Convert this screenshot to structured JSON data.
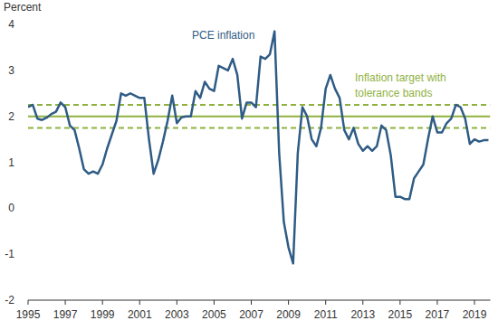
{
  "chart_data": {
    "type": "line",
    "y_label": "Percent",
    "x": [
      1995,
      1995.25,
      1995.5,
      1995.75,
      1996,
      1996.25,
      1996.5,
      1996.75,
      1997,
      1997.25,
      1997.5,
      1997.75,
      1998,
      1998.25,
      1998.5,
      1998.75,
      1999,
      1999.25,
      1999.5,
      1999.75,
      2000,
      2000.25,
      2000.5,
      2000.75,
      2001,
      2001.25,
      2001.5,
      2001.75,
      2002,
      2002.25,
      2002.5,
      2002.75,
      2003,
      2003.25,
      2003.5,
      2003.75,
      2004,
      2004.25,
      2004.5,
      2004.75,
      2005,
      2005.25,
      2005.5,
      2005.75,
      2006,
      2006.25,
      2006.5,
      2006.75,
      2007,
      2007.25,
      2007.5,
      2007.75,
      2008,
      2008.25,
      2008.5,
      2008.75,
      2009,
      2009.25,
      2009.5,
      2009.75,
      2010,
      2010.25,
      2010.5,
      2010.75,
      2011,
      2011.25,
      2011.5,
      2011.75,
      2012,
      2012.25,
      2012.5,
      2012.75,
      2013,
      2013.25,
      2013.5,
      2013.75,
      2014,
      2014.25,
      2014.5,
      2014.75,
      2015,
      2015.25,
      2015.5,
      2015.75,
      2016,
      2016.25,
      2016.5,
      2016.75,
      2017,
      2017.25,
      2017.5,
      2017.75,
      2018,
      2018.25,
      2018.5,
      2018.75,
      2019,
      2019.25,
      2019.5,
      2019.75
    ],
    "series": [
      {
        "name": "PCE inflation",
        "color": "#2f5c85",
        "line_style": "solid",
        "values": [
          2.2,
          2.25,
          1.95,
          1.92,
          1.97,
          2.05,
          2.1,
          2.3,
          2.2,
          1.8,
          1.7,
          1.3,
          0.85,
          0.75,
          0.8,
          0.75,
          0.95,
          1.3,
          1.6,
          1.9,
          2.5,
          2.45,
          2.5,
          2.45,
          2.4,
          2.4,
          1.5,
          0.75,
          1.05,
          1.45,
          1.9,
          2.45,
          1.85,
          1.98,
          2.0,
          2.0,
          2.55,
          2.4,
          2.75,
          2.6,
          2.55,
          3.1,
          3.05,
          3.0,
          3.25,
          2.9,
          1.95,
          2.3,
          2.3,
          2.2,
          3.3,
          3.25,
          3.35,
          3.85,
          1.2,
          -0.3,
          -0.85,
          -1.2,
          1.2,
          2.2,
          2.0,
          1.5,
          1.35,
          1.75,
          2.6,
          2.9,
          2.6,
          2.4,
          1.7,
          1.5,
          1.75,
          1.4,
          1.25,
          1.35,
          1.25,
          1.35,
          1.8,
          1.7,
          1.15,
          0.25,
          0.25,
          0.2,
          0.2,
          0.65,
          0.8,
          0.95,
          1.5,
          2.0,
          1.65,
          1.65,
          1.85,
          1.95,
          2.25,
          2.2,
          1.95,
          1.4,
          1.5,
          1.45,
          1.48,
          1.48
        ]
      }
    ],
    "target": {
      "label": [
        "Inflation target with",
        "tolerance bands"
      ],
      "color": "#8fb13f",
      "value": 2,
      "band": [
        1.75,
        2.25
      ]
    },
    "xlim": [
      1995,
      2019.85
    ],
    "xticks": [
      1995,
      1997,
      1999,
      2001,
      2003,
      2005,
      2007,
      2009,
      2011,
      2013,
      2015,
      2017,
      2019
    ],
    "ylim": [
      -2,
      4
    ],
    "yticks": [
      -2,
      -1,
      0,
      1,
      2,
      3,
      4
    ],
    "grid": false
  }
}
